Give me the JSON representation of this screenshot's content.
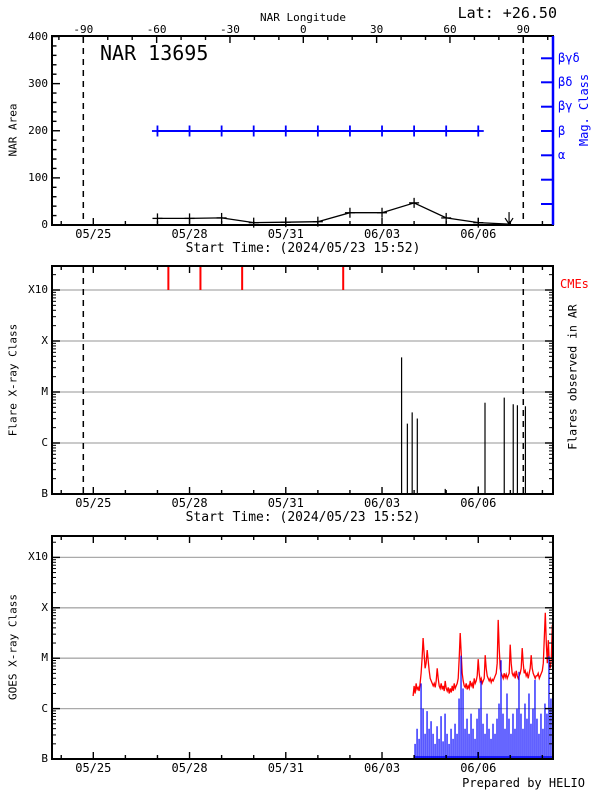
{
  "header": {
    "title": "NAR 13695",
    "lat": "Lat: +26.50",
    "top_axis_title": "NAR Longitude"
  },
  "labels": {
    "nar_area": "NAR Area",
    "mag_class": "Mag. Class",
    "flare_class": "Flare X-ray Class",
    "flares_observed": "Flares observed in AR",
    "cmes": "CMEs",
    "goes_class": "GOES X-ray Class",
    "start_time": "Start Time: (2024/05/23 15:52)",
    "prepared": "Prepared by HELIO"
  },
  "colors": {
    "axis": "#000000",
    "mag_axis": "#0000ff",
    "cme": "#ff0000",
    "goes_long": "#ff0000",
    "goes_short": "#0000ff",
    "grid": "#aaaaaa"
  },
  "time_axis": {
    "major_labels": [
      "05/25",
      "05/28",
      "05/31",
      "06/03",
      "06/06"
    ],
    "major_days": [
      0,
      3,
      6,
      9,
      12
    ],
    "minor_day_range": [
      -1,
      14
    ],
    "start_label": "Start Time: (2024/05/23 15:52)"
  },
  "longitude_axis": {
    "tick_labels": [
      "-90",
      "-60",
      "-30",
      "0",
      "30",
      "60",
      "90"
    ],
    "tick_values": [
      -90,
      -60,
      -30,
      0,
      30,
      60,
      90
    ],
    "limb_lines": [
      -90,
      90
    ]
  },
  "chart_data": [
    {
      "type": "line",
      "panel": "nar_area",
      "title": "NAR 13695",
      "ylabel": "NAR Area",
      "ylim": [
        0,
        400
      ],
      "yticks": [
        0,
        100,
        200,
        300,
        400
      ],
      "area_series": {
        "name": "NAR Area",
        "marker": "+",
        "days": [
          2,
          3,
          4,
          5,
          6,
          7,
          8,
          9,
          10,
          11,
          12,
          12.96
        ],
        "dates": [
          "05/27",
          "05/28",
          "05/29",
          "05/30",
          "05/31",
          "06/01",
          "06/02",
          "06/03",
          "06/04",
          "06/05",
          "06/06",
          "06/07"
        ],
        "values": [
          14,
          14,
          15,
          5,
          6,
          7,
          26,
          26,
          47,
          15,
          5,
          2
        ],
        "end_marker": "down-arrow"
      },
      "mag_series": {
        "name": "Mag. Class",
        "constant_value": "β",
        "marker": "+",
        "days": [
          2,
          3,
          4,
          5,
          6,
          7,
          8,
          9,
          10,
          11,
          12
        ],
        "line_end_day": 12.05
      },
      "right_axis": {
        "label": "Mag. Class",
        "tick_labels": [
          "βγδ",
          "βδ",
          "βγ",
          "β",
          "α"
        ]
      }
    },
    {
      "type": "event",
      "panel": "flares",
      "ylabel": "Flare X-ray Class",
      "yticks": [
        "B",
        "C",
        "M",
        "X",
        "X10"
      ],
      "cme_events": {
        "label": "CMEs",
        "days": [
          2.34,
          3.34,
          4.64,
          7.79
        ],
        "times": [
          "05/27 08:00",
          "05/28 08:00",
          "05/29 15:00",
          "06/01 19:00"
        ]
      },
      "flare_events": {
        "right_label": "Flares observed in AR",
        "events": [
          {
            "day": 9.61,
            "time": "06/03 15:00",
            "class": "M4.8",
            "mag": 2.68
          },
          {
            "day": 9.79,
            "time": "06/03 19:00",
            "class": "C2.4",
            "mag": 1.38
          },
          {
            "day": 9.94,
            "time": "06/03 23:00",
            "class": "C4.0",
            "mag": 1.6
          },
          {
            "day": 10.1,
            "time": "06/04 02:00",
            "class": "C3.0",
            "mag": 1.48
          },
          {
            "day": 10.97,
            "time": "06/04 23:00",
            "class": "B1.3",
            "mag": 0.1
          },
          {
            "day": 12.0,
            "time": "06/06 00:00",
            "class": "B1.4",
            "mag": 0.15
          },
          {
            "day": 12.21,
            "time": "06/06 05:00",
            "class": "C6.2",
            "mag": 1.79
          },
          {
            "day": 12.81,
            "time": "06/06 19:00",
            "class": "C7.8",
            "mag": 1.89
          },
          {
            "day": 13.09,
            "time": "06/07 02:00",
            "class": "C5.8",
            "mag": 1.76
          },
          {
            "day": 13.22,
            "time": "06/07 05:00",
            "class": "C5.5",
            "mag": 1.74
          },
          {
            "day": 13.47,
            "time": "06/07 11:00",
            "class": "C5.2",
            "mag": 1.72
          }
        ]
      },
      "limb_line_days": [
        -0.31,
        13.4
      ]
    },
    {
      "type": "line",
      "panel": "goes",
      "ylabel": "GOES X-ray Class",
      "yticks": [
        "B",
        "C",
        "M",
        "X",
        "X10"
      ],
      "series": [
        {
          "name": "GOES long channel",
          "color": "#ff0000",
          "style": "line",
          "x_start_day": 9.97,
          "x_step_day": 0.0312,
          "values": [
            1.25,
            1.45,
            1.3,
            1.5,
            1.38,
            1.42,
            1.35,
            1.5,
            1.7,
            2.0,
            2.4,
            2.1,
            1.8,
            1.9,
            2.16,
            1.95,
            1.75,
            1.6,
            1.55,
            1.5,
            1.45,
            1.5,
            1.42,
            1.55,
            1.8,
            1.6,
            1.45,
            1.4,
            1.5,
            1.38,
            1.45,
            1.35,
            1.55,
            1.4,
            1.35,
            1.42,
            1.3,
            1.4,
            1.32,
            1.45,
            1.35,
            1.5,
            1.4,
            1.45,
            1.5,
            1.6,
            2.0,
            2.5,
            2.1,
            1.7,
            1.55,
            1.45,
            1.42,
            1.5,
            1.38,
            1.45,
            1.4,
            1.55,
            1.45,
            1.5,
            1.4,
            1.6,
            1.5,
            1.55,
            1.65,
            1.98,
            1.7,
            1.55,
            1.6,
            1.5,
            1.55,
            1.6,
            2.06,
            1.8,
            1.65,
            1.6,
            1.55,
            1.6,
            1.52,
            1.58,
            1.55,
            1.6,
            1.65,
            1.7,
            1.9,
            2.76,
            2.2,
            1.8,
            1.7,
            1.65,
            1.6,
            1.7,
            1.62,
            1.68,
            1.6,
            1.65,
            1.7,
            2.27,
            1.9,
            1.7,
            1.65,
            1.7,
            1.6,
            1.75,
            1.65,
            1.6,
            1.65,
            1.7,
            1.8,
            2.2,
            1.9,
            1.7,
            1.75,
            1.65,
            1.7,
            1.6,
            1.7,
            1.8,
            2.06,
            1.8,
            1.7,
            1.65,
            1.6,
            1.65,
            1.65,
            1.7,
            1.6,
            1.65,
            1.7,
            1.75,
            1.9,
            2.4,
            2.9,
            2.3,
            1.9,
            2.36,
            1.9,
            1.8,
            2.0,
            2.66,
            2.1
          ]
        },
        {
          "name": "GOES short channel",
          "color": "#0000ff",
          "style": "spikes",
          "x_start_day": 10.03,
          "x_step_day": 0.0623,
          "values": [
            0.3,
            0.6,
            0.4,
            1.5,
            1.0,
            0.5,
            0.95,
            0.6,
            0.75,
            0.5,
            0.3,
            0.65,
            0.4,
            0.85,
            0.35,
            0.9,
            0.5,
            0.3,
            0.6,
            0.4,
            0.7,
            0.5,
            1.2,
            2.05,
            1.4,
            0.6,
            0.8,
            0.5,
            0.9,
            0.6,
            0.4,
            0.8,
            1.0,
            1.55,
            0.7,
            0.5,
            0.9,
            0.6,
            0.4,
            0.7,
            0.5,
            0.8,
            1.1,
            1.96,
            0.9,
            0.6,
            1.3,
            0.8,
            0.5,
            0.9,
            0.6,
            1.0,
            1.73,
            0.9,
            0.6,
            1.1,
            0.8,
            1.3,
            0.7,
            1.0,
            1.57,
            0.8,
            0.5,
            0.9,
            0.6,
            1.1,
            0.9,
            2.04,
            1.2,
            1.5
          ]
        }
      ]
    }
  ]
}
